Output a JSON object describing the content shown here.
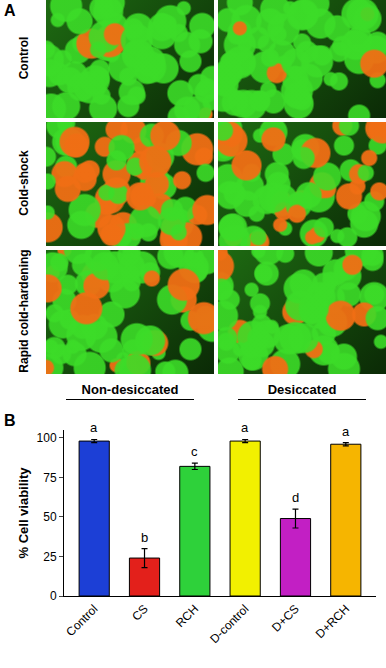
{
  "figure": {
    "panel_labels": [
      "A",
      "B"
    ],
    "rows": [
      "Control",
      "Cold-shock",
      "Rapid cold-hardening"
    ],
    "columns": [
      "Non-desiccated",
      "Desiccated"
    ]
  },
  "chart_data": {
    "type": "bar",
    "categories": [
      "Control",
      "CS",
      "RCH",
      "D-control",
      "D+CS",
      "D+RCH"
    ],
    "values": [
      98,
      24,
      82,
      98,
      49,
      96
    ],
    "errors": [
      1,
      6,
      2,
      1,
      6,
      1
    ],
    "annotations": [
      "a",
      "b",
      "c",
      "a",
      "d",
      "a"
    ],
    "colors": [
      "#1c3fd6",
      "#e3201b",
      "#2ed13a",
      "#f2f000",
      "#c21fc4",
      "#f6b500"
    ],
    "ylabel": "% Cell viability",
    "ylim": [
      0,
      105
    ],
    "yticks": [
      0,
      25,
      50,
      75,
      100
    ]
  }
}
